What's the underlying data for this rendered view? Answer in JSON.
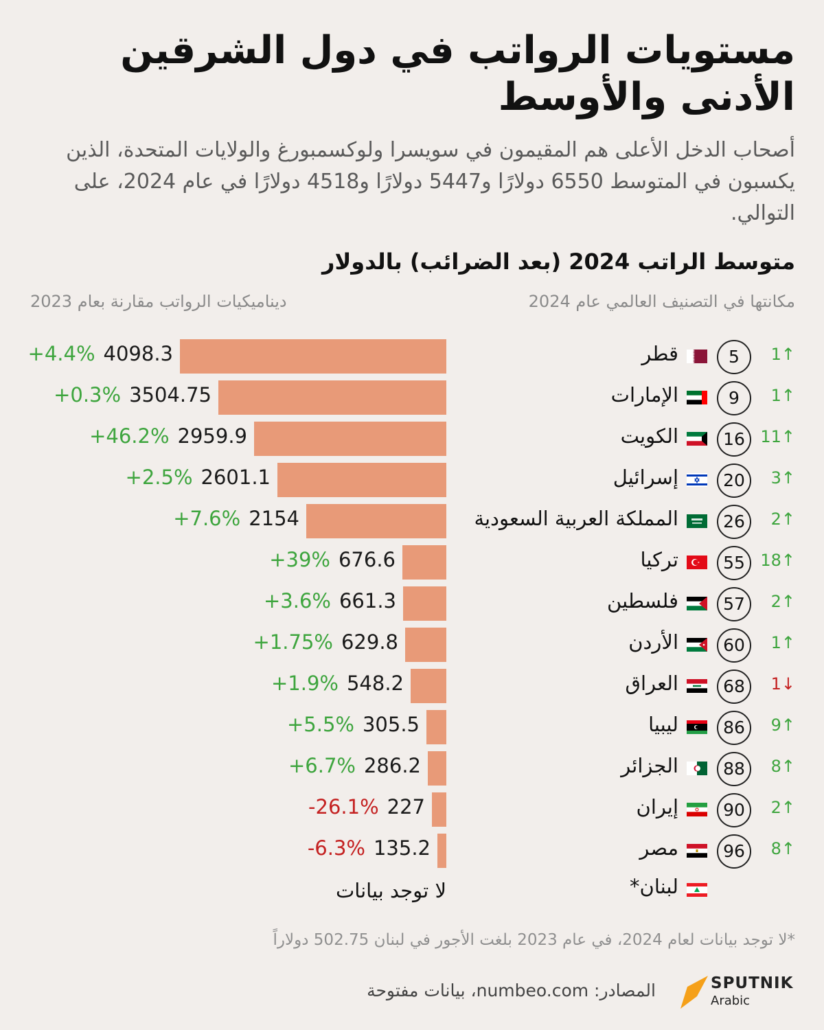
{
  "title": "مستويات الرواتب  في دول الشرقين الأدنى والأوسط",
  "subtitle": "أصحاب الدخل الأعلى هم المقيمون في سويسرا ولوكسمبورغ والولايات المتحدة، الذين يكسبون في المتوسط 6550 دولارًا و5447 دولارًا و4518 دولارًا في عام 2024، على التوالي.",
  "chart_data": {
    "type": "bar",
    "title": "متوسط الراتب 2024 (بعد الضرائب) بالدولار",
    "orientation": "horizontal",
    "columns": {
      "rank": "مكانتها في التصنيف العالمي عام 2024",
      "change": "ديناميكيات الرواتب مقارنة بعام 2023"
    },
    "rows": [
      {
        "country": "قطر",
        "value": 4098.3,
        "value_label": "4098.3",
        "change": "+4.4%",
        "rank": "5",
        "move": "1↑",
        "move_dir": "up",
        "flag": "qatar"
      },
      {
        "country": "الإمارات",
        "value": 3504.75,
        "value_label": "3504.75",
        "change": "+0.3%",
        "rank": "9",
        "move": "1↑",
        "move_dir": "up",
        "flag": "uae"
      },
      {
        "country": "الكويت",
        "value": 2959.9,
        "value_label": "2959.9",
        "change": "+46.2%",
        "rank": "16",
        "move": "11↑",
        "move_dir": "up",
        "flag": "kuwait"
      },
      {
        "country": "إسرائيل",
        "value": 2601.1,
        "value_label": "2601.1",
        "change": "+2.5%",
        "rank": "20",
        "move": "3↑",
        "move_dir": "up",
        "flag": "israel"
      },
      {
        "country": "المملكة العربية السعودية",
        "value": 2154,
        "value_label": "2154",
        "change": "+7.6%",
        "rank": "26",
        "move": "2↑",
        "move_dir": "up",
        "flag": "saudi"
      },
      {
        "country": "تركيا",
        "value": 676.6,
        "value_label": "676.6",
        "change": "+39%",
        "rank": "55",
        "move": "18↑",
        "move_dir": "up",
        "flag": "turkey"
      },
      {
        "country": "فلسطين",
        "value": 661.3,
        "value_label": "661.3",
        "change": "+3.6%",
        "rank": "57",
        "move": "2↑",
        "move_dir": "up",
        "flag": "palestine"
      },
      {
        "country": "الأردن",
        "value": 629.8,
        "value_label": "629.8",
        "change": "+1.75%",
        "rank": "60",
        "move": "1↑",
        "move_dir": "up",
        "flag": "jordan"
      },
      {
        "country": "العراق",
        "value": 548.2,
        "value_label": "548.2",
        "change": "+1.9%",
        "rank": "68",
        "move": "1↓",
        "move_dir": "down",
        "flag": "iraq"
      },
      {
        "country": "ليبيا",
        "value": 305.5,
        "value_label": "305.5",
        "change": "+5.5%",
        "rank": "86",
        "move": "9↑",
        "move_dir": "up",
        "flag": "libya"
      },
      {
        "country": "الجزائر",
        "value": 286.2,
        "value_label": "286.2",
        "change": "+6.7%",
        "rank": "88",
        "move": "8↑",
        "move_dir": "up",
        "flag": "algeria"
      },
      {
        "country": "إيران",
        "value": 227,
        "value_label": "227",
        "change": "-26.1%",
        "rank": "90",
        "move": "2↑",
        "move_dir": "up",
        "flag": "iran"
      },
      {
        "country": "مصر",
        "value": 135.2,
        "value_label": "135.2",
        "change": "-6.3%",
        "rank": "96",
        "move": "8↑",
        "move_dir": "up",
        "flag": "egypt"
      }
    ],
    "no_data_row": {
      "country": "لبنان*",
      "text": "لا توجد بيانات",
      "flag": "lebanon"
    },
    "colors": {
      "bar": "#e89a78",
      "positive": "#3ea53e",
      "negative": "#c42121"
    }
  },
  "footnote": "*لا توجد بيانات لعام 2024، في عام 2023 بلغت الأجور في لبنان 502.75 دولاراً",
  "sources": "المصادر: numbeo.com، بيانات مفتوحة",
  "logo": {
    "word": "SPUTNIK",
    "sub": "Arabic",
    "color": "#f5a019"
  }
}
